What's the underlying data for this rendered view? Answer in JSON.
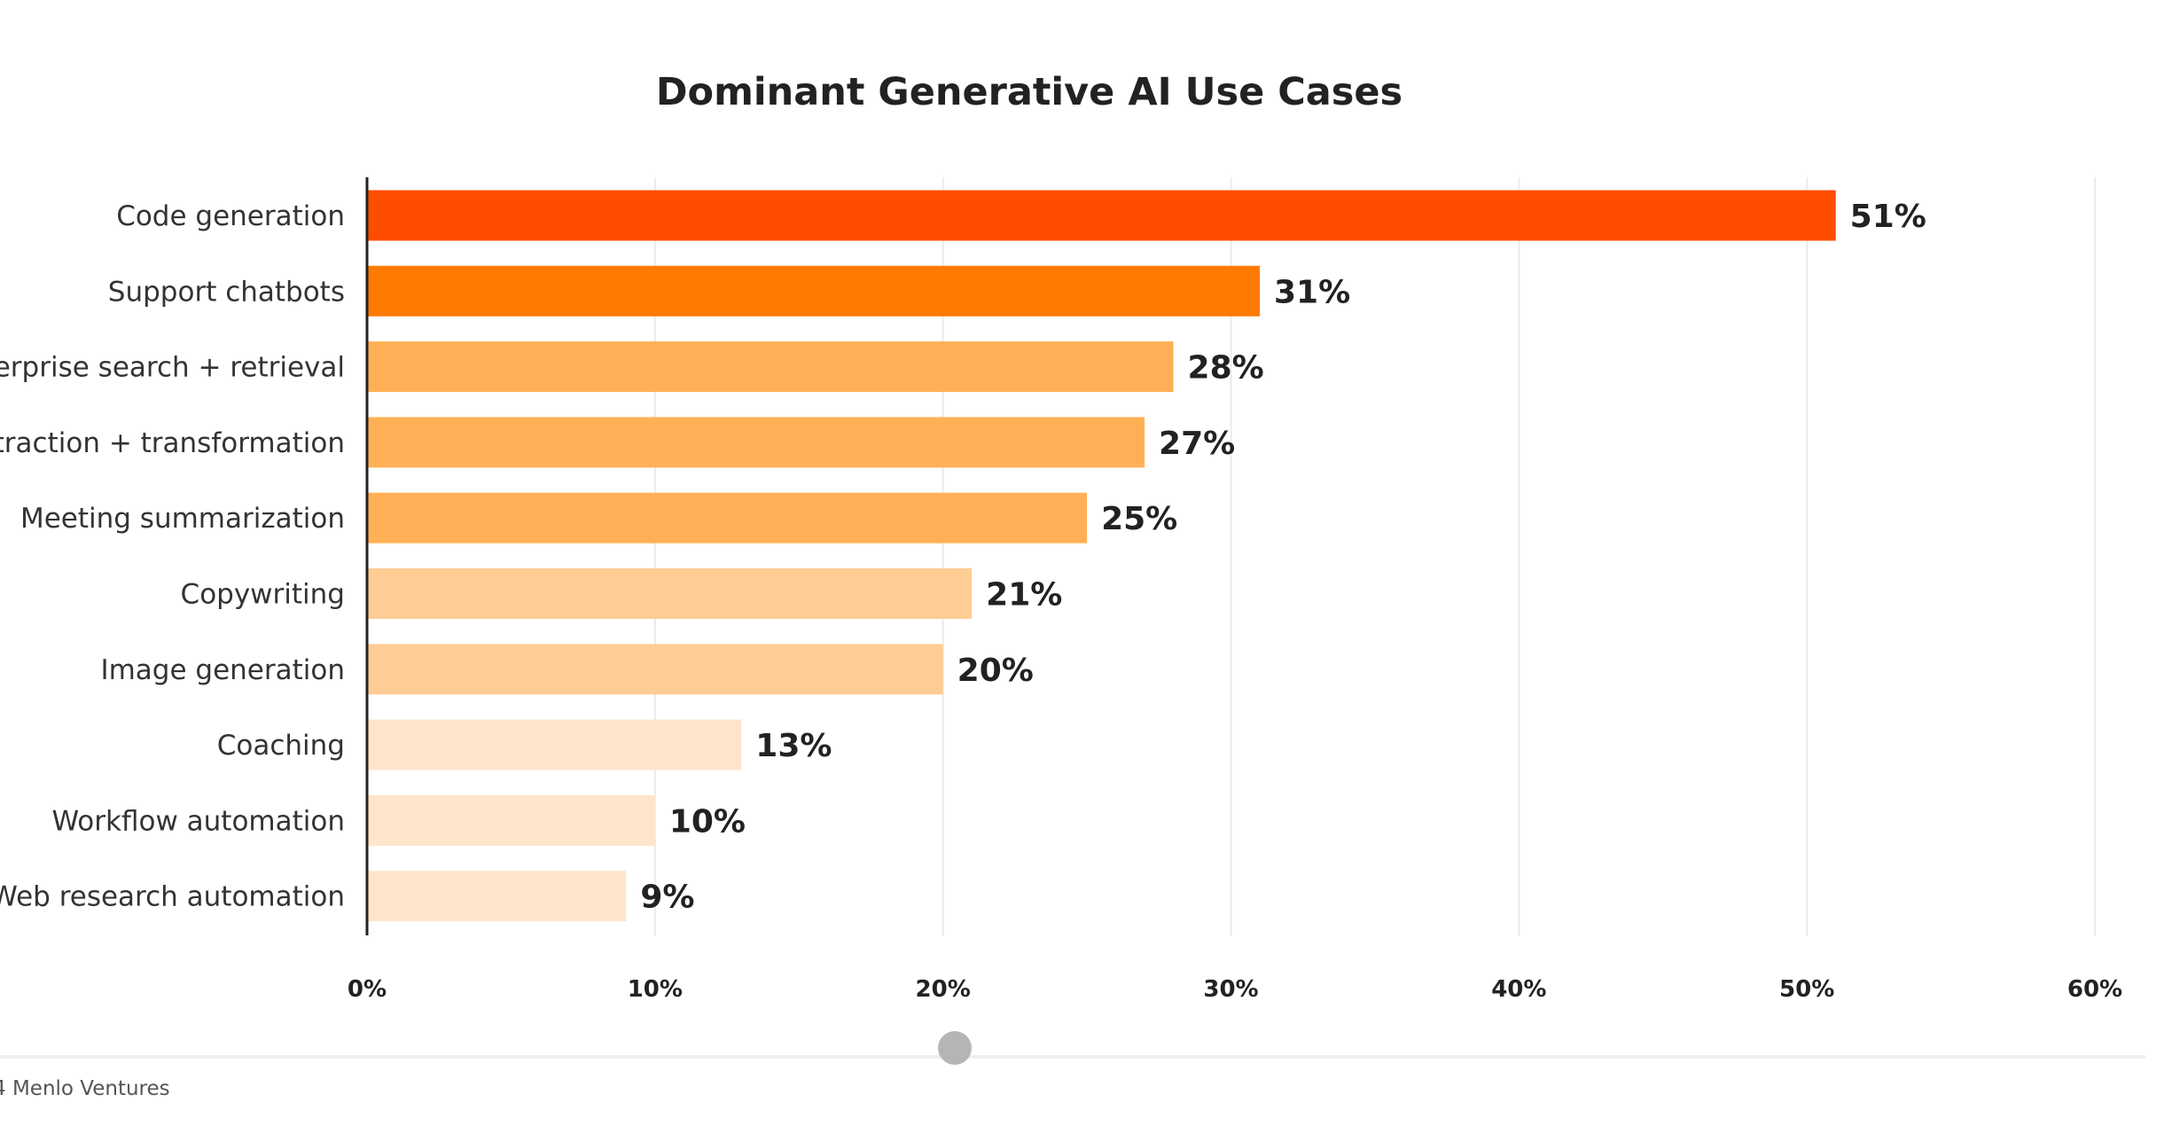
{
  "chart_data": {
    "type": "bar",
    "orientation": "horizontal",
    "title": "Dominant Generative AI Use Cases",
    "categories": [
      "Code generation",
      "Support chatbots",
      "Enterprise search + retrieval",
      "extraction + transformation",
      "Meeting summarization",
      "Copywriting",
      "Image generation",
      "Coaching",
      "Workflow automation",
      "Web research automation"
    ],
    "values": [
      51,
      31,
      28,
      27,
      25,
      21,
      20,
      13,
      10,
      9
    ],
    "value_labels": [
      "51%",
      "31%",
      "28%",
      "27%",
      "25%",
      "21%",
      "20%",
      "13%",
      "10%",
      "9%"
    ],
    "bar_colors": [
      "#FF4D00",
      "#FF7A00",
      "#FFB056",
      "#FFB056",
      "#FFB056",
      "#FFCC94",
      "#FFCC94",
      "#FFE5CC",
      "#FFE5CC",
      "#FFE5CC"
    ],
    "xlim": [
      0,
      60
    ],
    "x_ticks": [
      0,
      10,
      20,
      30,
      40,
      50,
      60
    ],
    "x_tick_labels": [
      "0%",
      "10%",
      "20%",
      "30%",
      "40%",
      "50%",
      "60%"
    ],
    "grid": true,
    "xlabel": "",
    "ylabel": ""
  },
  "footer": {
    "source": "4 Menlo Ventures"
  },
  "colors": {
    "axis": "#222222",
    "grid": "#EBEBEB",
    "scrollbar_track": "#EEEEEE",
    "scrollbar_thumb": "#B5B5B5"
  }
}
